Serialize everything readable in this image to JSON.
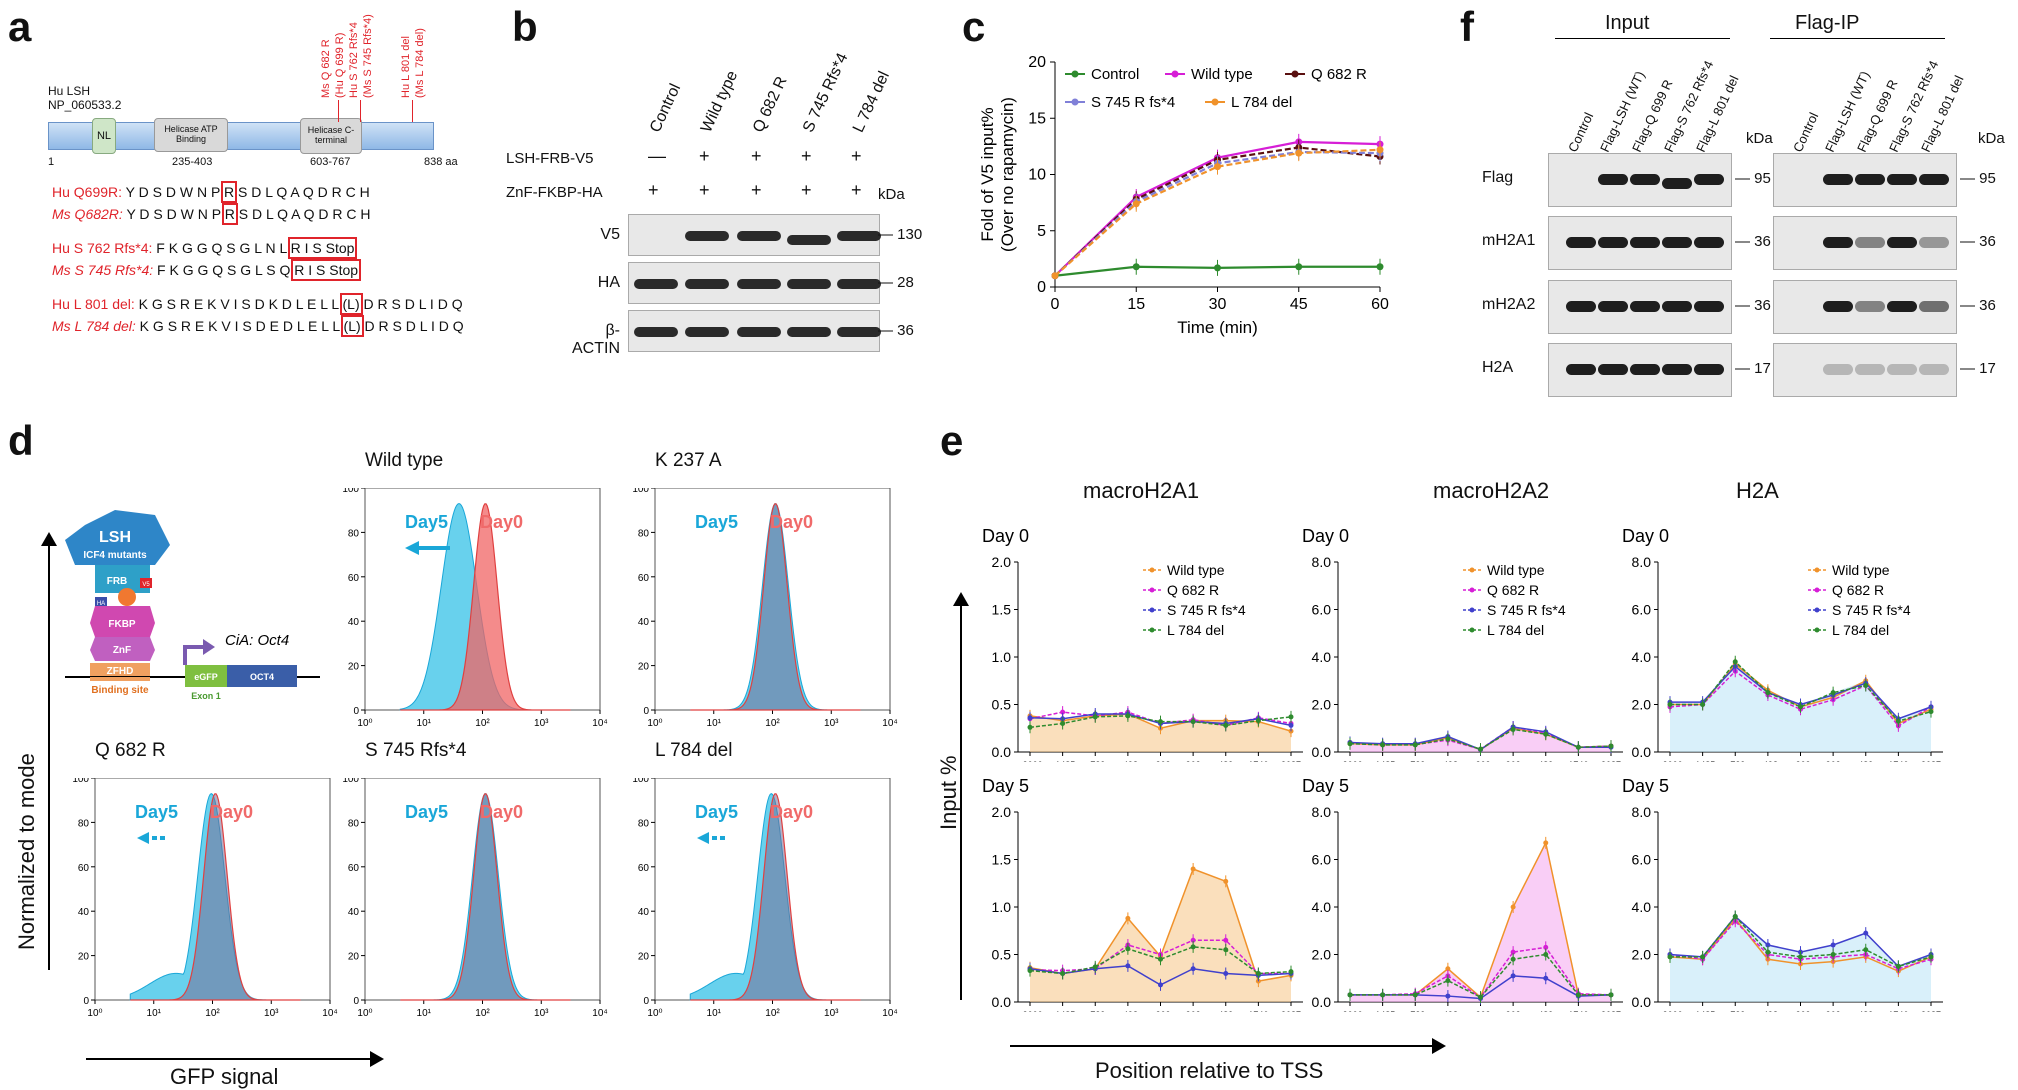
{
  "panels": {
    "a": "a",
    "b": "b",
    "c": "c",
    "d": "d",
    "e": "e",
    "f": "f"
  },
  "a": {
    "protein_name": "Hu LSH",
    "accession": "NP_060533.2",
    "domains": {
      "nl": "NL",
      "helicase_atp": "Helicase ATP Binding",
      "helicase_atp_range": "235-403",
      "helicase_c": "Helicase C-terminal",
      "helicase_c_range": "603-767"
    },
    "start": "1",
    "end": "838 aa",
    "mut_labels": [
      "Ms Q 682 R",
      "(Hu Q 699 R)",
      "Hu S 762 Rfs*4",
      "(Ms S 745 Rfs*4)",
      "Hu L 801 del",
      "(Ms L 784 del)"
    ],
    "seqs": [
      {
        "name": "Hu Q699R:",
        "pre": " Y D S D W N P ",
        "box": "R",
        "post": " S D L Q A Q D R C H"
      },
      {
        "name": "Ms Q682R:",
        "pre": " Y D S D W N P ",
        "box": "R",
        "post": " S D L Q A Q D R C H"
      },
      {
        "name": "Hu S 762 Rfs*4:",
        "pre": " F K G G Q S G L N L ",
        "box": "R I S Stop",
        "post": ""
      },
      {
        "name": "Ms S 745 Rfs*4:",
        "pre": " F K G G Q S G L S Q ",
        "box": "R I S Stop",
        "post": ""
      },
      {
        "name": "Hu L 801 del:",
        "pre": " K G S R E K V I S D K D L E L L ",
        "box": "(L)",
        "post": " D R S D L I D Q"
      },
      {
        "name": "Ms L 784 del:",
        "pre": " K G S R E K V I S D E D L E L L ",
        "box": "(L)",
        "post": " D R S D L I D Q"
      }
    ]
  },
  "b": {
    "columns": [
      "Control",
      "Wild type",
      "Q 682 R",
      "S 745 Rfs*4",
      "L 784 del"
    ],
    "row1_label": "LSH-FRB-V5",
    "row1_signs": [
      "—",
      "+",
      "+",
      "+",
      "+"
    ],
    "row2_label": "ZnF-FKBP-HA",
    "row2_signs": [
      "+",
      "+",
      "+",
      "+",
      "+"
    ],
    "kda": "kDa",
    "blots": [
      {
        "label": "V5",
        "mw": "130"
      },
      {
        "label": "HA",
        "mw": "28"
      },
      {
        "label": "β-ACTIN",
        "mw": "36"
      }
    ]
  },
  "c": {
    "chart_data": {
      "type": "line",
      "title": "",
      "xlabel": "Time (min)",
      "ylabel": "Fold of V5 input% (Over no rapamycin)",
      "ylabel_line1": "Fold of V5 input%",
      "ylabel_line2": "(Over no rapamycin)",
      "x": [
        0,
        15,
        30,
        45,
        60
      ],
      "xlim": [
        0,
        60
      ],
      "ylim": [
        0,
        20
      ],
      "xticks": [
        "0",
        "15",
        "30",
        "45",
        "60"
      ],
      "yticks": [
        "0",
        "5",
        "10",
        "15",
        "20"
      ],
      "series": [
        {
          "name": "Control",
          "color": "#2e8b2e",
          "values": [
            1,
            1.8,
            1.7,
            1.8,
            1.8
          ]
        },
        {
          "name": "Wild type",
          "color": "#d61ed6",
          "values": [
            1,
            8,
            11.5,
            12.9,
            12.7
          ]
        },
        {
          "name": "Q 682 R",
          "color": "#5a1010",
          "values": [
            1,
            7.8,
            11.3,
            12.4,
            11.6
          ]
        },
        {
          "name": "S 745 R fs*4",
          "color": "#8080d8",
          "values": [
            1,
            7.6,
            11,
            12,
            11.9
          ]
        },
        {
          "name": "L 784 del",
          "color": "#f0922b",
          "values": [
            1,
            7.4,
            10.7,
            11.9,
            12.2
          ]
        }
      ]
    }
  },
  "d": {
    "ylabel": "Normalized to mode",
    "xlabel": "GFP signal",
    "diagram": {
      "lsh": "LSH",
      "icf4": "ICF4 mutants",
      "frb": "FRB",
      "v5": "V5",
      "ha": "HA",
      "fkbp": "FKBP",
      "znf": "ZnF",
      "zfhd": "ZFHD",
      "egfp": "eGFP",
      "oct4": "OCT4",
      "binding_site": "Binding site",
      "exon1": "Exon 1",
      "cia": "CiA: Oct4"
    },
    "day5": "Day5",
    "day0": "Day0",
    "xticks": [
      "10⁰",
      "10¹",
      "10²",
      "10³",
      "10⁴"
    ],
    "yticks": [
      "0",
      "20",
      "40",
      "60",
      "80",
      "100"
    ],
    "histograms": [
      {
        "title": "Wild type",
        "shift": "strong"
      },
      {
        "title": "K 237 A",
        "shift": "none"
      },
      {
        "title": "Q 682 R",
        "shift": "weak"
      },
      {
        "title": "S 745 Rfs*4",
        "shift": "none"
      },
      {
        "title": "L 784 del",
        "shift": "weak"
      }
    ]
  },
  "e": {
    "ylabel": "Input %",
    "xlabel": "Position relative to TSS",
    "day0": "Day 0",
    "day5": "Day 5",
    "legend": [
      "Wild type",
      "Q 682 R",
      "S 745 R fs*4",
      "L 784 del"
    ],
    "colors": [
      "#f0922b",
      "#d61ed6",
      "#4040cc",
      "#2e8b2e"
    ],
    "positions": [
      "−3000",
      "−1485",
      "−739",
      "−498",
      "−309",
      "362",
      "489",
      "1746",
      "3087"
    ],
    "chart_data": [
      {
        "type": "line",
        "title": "macroH2A1 Day 0",
        "ylim": [
          0,
          2
        ],
        "yticks": [
          "0.0",
          "0.5",
          "1.0",
          "1.5",
          "2.0"
        ],
        "fill": "#f7c98f",
        "series": [
          {
            "name": "Wild type",
            "values": [
              0.38,
              0.33,
              0.38,
              0.4,
              0.25,
              0.33,
              0.33,
              0.32,
              0.22
            ]
          },
          {
            "name": "Q 682 R",
            "values": [
              0.35,
              0.42,
              0.38,
              0.42,
              0.3,
              0.34,
              0.28,
              0.36,
              0.3
            ]
          },
          {
            "name": "S 745 R fs*4",
            "values": [
              0.36,
              0.35,
              0.4,
              0.4,
              0.3,
              0.32,
              0.3,
              0.35,
              0.28
            ]
          },
          {
            "name": "L 784 del",
            "values": [
              0.26,
              0.3,
              0.37,
              0.38,
              0.32,
              0.32,
              0.28,
              0.33,
              0.37
            ]
          }
        ]
      },
      {
        "type": "line",
        "title": "macroH2A2 Day 0",
        "ylim": [
          0,
          8
        ],
        "yticks": [
          "0.0",
          "2.0",
          "4.0",
          "6.0",
          "8.0"
        ],
        "fill": "#f5aef0",
        "series": [
          {
            "name": "Wild type",
            "values": [
              0.35,
              0.3,
              0.3,
              0.6,
              0.1,
              1,
              0.75,
              0.2,
              0.25
            ]
          },
          {
            "name": "Q 682 R",
            "values": [
              0.4,
              0.3,
              0.32,
              0.5,
              0.12,
              1.05,
              0.8,
              0.2,
              0.25
            ]
          },
          {
            "name": "S 745 R fs*4",
            "values": [
              0.4,
              0.35,
              0.35,
              0.65,
              0.1,
              1.05,
              0.85,
              0.2,
              0.2
            ]
          },
          {
            "name": "L 784 del",
            "values": [
              0.35,
              0.3,
              0.3,
              0.55,
              0.12,
              0.95,
              0.75,
              0.2,
              0.25
            ]
          }
        ]
      },
      {
        "type": "line",
        "title": "H2A Day 0",
        "ylim": [
          0,
          8
        ],
        "yticks": [
          "0.0",
          "2.0",
          "4.0",
          "6.0",
          "8.0"
        ],
        "fill": "#bfe6f6",
        "series": [
          {
            "name": "Wild type",
            "values": [
              2,
              2,
              3.7,
              2.6,
              1.9,
              2.3,
              3,
              1.2,
              1.8
            ]
          },
          {
            "name": "Q 682 R",
            "values": [
              1.9,
              2,
              3.4,
              2.4,
              1.8,
              2.2,
              2.8,
              1.1,
              1.9
            ]
          },
          {
            "name": "S 745 R fs*4",
            "values": [
              2.1,
              2.1,
              3.6,
              2.5,
              2,
              2.4,
              2.9,
              1.4,
              1.9
            ]
          },
          {
            "name": "L 784 del",
            "values": [
              2,
              2,
              3.8,
              2.5,
              1.9,
              2.5,
              2.8,
              1.3,
              1.7
            ]
          }
        ]
      },
      {
        "type": "line",
        "title": "macroH2A1 Day 5",
        "ylim": [
          0,
          2
        ],
        "yticks": [
          "0.0",
          "0.5",
          "1.0",
          "1.5",
          "2.0"
        ],
        "fill": "#f7c98f",
        "series": [
          {
            "name": "Wild type",
            "values": [
              0.36,
              0.3,
              0.35,
              0.88,
              0.48,
              1.4,
              1.27,
              0.22,
              0.28
            ]
          },
          {
            "name": "Q 682 R",
            "values": [
              0.34,
              0.33,
              0.35,
              0.6,
              0.5,
              0.65,
              0.65,
              0.3,
              0.3
            ]
          },
          {
            "name": "S 745 R fs*4",
            "values": [
              0.35,
              0.3,
              0.35,
              0.38,
              0.18,
              0.35,
              0.3,
              0.28,
              0.3
            ]
          },
          {
            "name": "L 784 del",
            "values": [
              0.33,
              0.3,
              0.37,
              0.56,
              0.45,
              0.58,
              0.55,
              0.3,
              0.32
            ]
          }
        ]
      },
      {
        "type": "line",
        "title": "macroH2A2 Day 5",
        "ylim": [
          0,
          8
        ],
        "yticks": [
          "0.0",
          "2.0",
          "4.0",
          "6.0",
          "8.0"
        ],
        "fill": "#f5aef0",
        "series": [
          {
            "name": "Wild type",
            "values": [
              0.3,
              0.3,
              0.3,
              1.4,
              0.2,
              4,
              6.7,
              0.3,
              0.3
            ]
          },
          {
            "name": "Q 682 R",
            "values": [
              0.3,
              0.3,
              0.35,
              1.1,
              0.2,
              2.1,
              2.3,
              0.35,
              0.3
            ]
          },
          {
            "name": "S 745 R fs*4",
            "values": [
              0.3,
              0.3,
              0.3,
              0.25,
              0.15,
              1.1,
              1,
              0.25,
              0.3
            ]
          },
          {
            "name": "L 784 del",
            "values": [
              0.3,
              0.3,
              0.3,
              0.9,
              0.2,
              1.8,
              2,
              0.3,
              0.3
            ]
          }
        ]
      },
      {
        "type": "line",
        "title": "H2A Day 5",
        "ylim": [
          0,
          8
        ],
        "yticks": [
          "0.0",
          "2.0",
          "4.0",
          "6.0",
          "8.0"
        ],
        "fill": "#bfe6f6",
        "series": [
          {
            "name": "Wild type",
            "values": [
              1.9,
              1.8,
              3.5,
              1.8,
              1.6,
              1.7,
              1.9,
              1.3,
              1.9
            ]
          },
          {
            "name": "Q 682 R",
            "values": [
              2,
              1.8,
              3.4,
              2,
              1.8,
              1.9,
              2,
              1.4,
              1.8
            ]
          },
          {
            "name": "S 745 R fs*4",
            "values": [
              2,
              1.9,
              3.6,
              2.4,
              2.1,
              2.4,
              2.9,
              1.5,
              2
            ]
          },
          {
            "name": "L 784 del",
            "values": [
              1.9,
              1.9,
              3.6,
              2.1,
              1.9,
              2,
              2.2,
              1.5,
              1.9
            ]
          }
        ]
      }
    ]
  },
  "f": {
    "input": "Input",
    "flagip": "Flag-IP",
    "lanes": [
      "Control",
      "Flag-LSH (WT)",
      "Flag-Q 699 R",
      "Flag-S 762 Rfs*4",
      "Flag-L 801 del"
    ],
    "kda": "kDa",
    "blots": [
      {
        "label": "Flag",
        "mw": "95"
      },
      {
        "label": "mH2A1",
        "mw": "36"
      },
      {
        "label": "mH2A2",
        "mw": "36"
      },
      {
        "label": "H2A",
        "mw": "17"
      }
    ]
  }
}
